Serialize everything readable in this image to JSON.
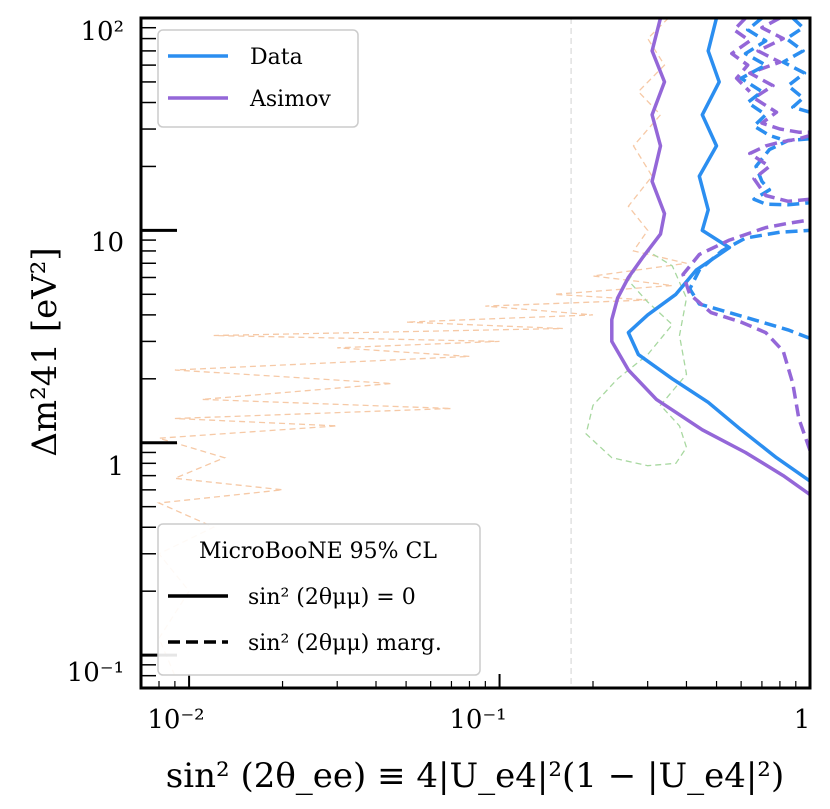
{
  "chart_data": {
    "type": "line",
    "title": "",
    "xlabel": "sin² (2θ_ee) ≡ 4|U_e4|²(1 − |U_e4|²)",
    "ylabel": "Δm²41 [eV²]",
    "xscale": "log",
    "yscale": "log",
    "xlim": [
      0.007,
      1.0
    ],
    "ylim": [
      0.07,
      100
    ],
    "x_tick_labels": [
      "10⁻²",
      "10⁻¹",
      "1"
    ],
    "y_tick_labels": [
      "10⁻¹",
      "1",
      "10",
      "10²"
    ],
    "grid": false,
    "legends": [
      {
        "position": "top-left",
        "entries": [
          "Data",
          "Asimov"
        ]
      },
      {
        "position": "bottom-left",
        "title": "MicroBooNE 95% CL",
        "entries": [
          "sin² (2θμμ) = 0",
          "sin² (2θμμ)  marg."
        ]
      }
    ],
    "reference_lines": [
      {
        "type": "vertical",
        "x": 0.17,
        "style": "thin dashed",
        "color": "#cccccc"
      }
    ],
    "series": [
      {
        "name": "Data",
        "variant": "sin² (2θμμ) = 0",
        "color": "#2b8ef0",
        "style": "solid",
        "points": [
          [
            0.5,
            100
          ],
          [
            0.47,
            70
          ],
          [
            0.51,
            50
          ],
          [
            0.45,
            35
          ],
          [
            0.5,
            25
          ],
          [
            0.44,
            18
          ],
          [
            0.47,
            12.5
          ],
          [
            0.45,
            10
          ],
          [
            0.55,
            8.3
          ],
          [
            0.43,
            6.5
          ],
          [
            0.37,
            5.0
          ],
          [
            0.3,
            4.0
          ],
          [
            0.26,
            3.3
          ],
          [
            0.28,
            2.6
          ],
          [
            0.36,
            2.0
          ],
          [
            0.47,
            1.55
          ],
          [
            0.6,
            1.15
          ],
          [
            0.78,
            0.85
          ],
          [
            1.0,
            0.66
          ]
        ]
      },
      {
        "name": "Asimov",
        "variant": "sin² (2θμμ) = 0",
        "color": "#9467d8",
        "style": "solid",
        "points": [
          [
            0.33,
            100
          ],
          [
            0.31,
            70
          ],
          [
            0.34,
            50
          ],
          [
            0.31,
            35
          ],
          [
            0.33,
            25
          ],
          [
            0.31,
            17
          ],
          [
            0.34,
            12
          ],
          [
            0.33,
            9.6
          ],
          [
            0.29,
            7.5
          ],
          [
            0.26,
            6.0
          ],
          [
            0.24,
            4.8
          ],
          [
            0.23,
            3.8
          ],
          [
            0.23,
            3.0
          ],
          [
            0.26,
            2.2
          ],
          [
            0.32,
            1.6
          ],
          [
            0.45,
            1.15
          ],
          [
            0.62,
            0.9
          ],
          [
            0.82,
            0.7
          ],
          [
            1.0,
            0.57
          ]
        ]
      },
      {
        "name": "Data",
        "variant": "sin² (2θμμ)  marg.",
        "color": "#2b8ef0",
        "style": "dashed",
        "points": [
          [
            1.0,
            3.1
          ],
          [
            0.85,
            3.4
          ],
          [
            0.7,
            3.7
          ],
          [
            0.55,
            4.1
          ],
          [
            0.44,
            4.5
          ],
          [
            0.41,
            5.3
          ],
          [
            0.44,
            6.5
          ],
          [
            0.52,
            8.0
          ],
          [
            0.62,
            9.2
          ],
          [
            0.8,
            9.8
          ],
          [
            1.0,
            10
          ]
        ]
      },
      {
        "name": "Asimov",
        "variant": "sin² (2θμμ)  marg.",
        "color": "#9467d8",
        "style": "dashed",
        "points": [
          [
            1.0,
            0.92
          ],
          [
            0.92,
            1.3
          ],
          [
            0.88,
            1.9
          ],
          [
            0.82,
            2.7
          ],
          [
            0.72,
            3.3
          ],
          [
            0.6,
            3.7
          ],
          [
            0.48,
            4.1
          ],
          [
            0.41,
            5.0
          ],
          [
            0.39,
            6.2
          ],
          [
            0.44,
            7.7
          ],
          [
            0.55,
            9.0
          ],
          [
            0.72,
            10.3
          ],
          [
            0.85,
            10.8
          ],
          [
            1.0,
            11.2
          ]
        ]
      },
      {
        "name": "Data",
        "variant": "sin² (2θμμ)  marg.",
        "color": "#2b8ef0",
        "style": "dashed",
        "points": [
          [
            1.0,
            27
          ],
          [
            0.85,
            26.5
          ],
          [
            0.74,
            24
          ],
          [
            0.67,
            20
          ],
          [
            0.7,
            17
          ],
          [
            0.74,
            15.5
          ],
          [
            0.66,
            14
          ],
          [
            0.72,
            13.3
          ],
          [
            0.85,
            13.2
          ],
          [
            1.0,
            13.5
          ]
        ]
      },
      {
        "name": "Asimov",
        "variant": "sin² (2θμμ)  marg.",
        "color": "#9467d8",
        "style": "dashed",
        "points": [
          [
            1.0,
            14
          ],
          [
            0.85,
            13.7
          ],
          [
            0.72,
            14.6
          ],
          [
            0.66,
            17.5
          ],
          [
            0.74,
            20
          ],
          [
            0.64,
            23
          ],
          [
            0.72,
            25
          ],
          [
            0.8,
            26
          ],
          [
            0.92,
            27
          ],
          [
            1.0,
            28
          ]
        ]
      },
      {
        "name": "Data",
        "variant": "sin² (2θμμ)  marg.",
        "color": "#2b8ef0",
        "style": "dashed",
        "points": [
          [
            0.88,
            100
          ],
          [
            0.95,
            90
          ],
          [
            0.84,
            80
          ],
          [
            0.95,
            70
          ],
          [
            0.82,
            62
          ],
          [
            0.96,
            55
          ],
          [
            0.85,
            48
          ],
          [
            0.95,
            42
          ],
          [
            0.88,
            38
          ],
          [
            1.0,
            36
          ]
        ]
      },
      {
        "name": "Asimov",
        "variant": "sin² (2θμμ)  marg.",
        "color": "#9467d8",
        "style": "dashed",
        "points": [
          [
            0.8,
            100
          ],
          [
            0.7,
            90
          ],
          [
            0.82,
            80
          ],
          [
            0.68,
            70
          ],
          [
            0.8,
            62
          ],
          [
            0.64,
            55
          ],
          [
            0.76,
            48
          ],
          [
            0.66,
            42
          ],
          [
            0.78,
            36
          ],
          [
            0.7,
            32
          ],
          [
            0.8,
            30
          ],
          [
            0.92,
            29
          ],
          [
            1.0,
            29
          ]
        ]
      },
      {
        "name": "Data",
        "variant": "sin² (2θμμ)  marg.",
        "color": "#2b8ef0",
        "style": "dashed",
        "points": [
          [
            0.7,
            100
          ],
          [
            0.63,
            88
          ],
          [
            0.72,
            78
          ],
          [
            0.62,
            68
          ],
          [
            0.72,
            60
          ],
          [
            0.6,
            52
          ],
          [
            0.7,
            45
          ],
          [
            0.63,
            40
          ],
          [
            0.72,
            35
          ],
          [
            0.66,
            31
          ],
          [
            0.74,
            28
          ],
          [
            0.8,
            27
          ]
        ]
      },
      {
        "name": "Asimov",
        "variant": "sin² (2θμμ)  marg.",
        "color": "#9467d8",
        "style": "dashed",
        "points": [
          [
            0.62,
            100
          ],
          [
            0.57,
            88
          ],
          [
            0.64,
            78
          ],
          [
            0.56,
            68
          ],
          [
            0.63,
            60
          ],
          [
            0.58,
            52
          ],
          [
            0.64,
            45
          ]
        ]
      }
    ],
    "background_traces": [
      {
        "color": "#f6c9a6",
        "style": "thin dashed",
        "closed": false,
        "points": [
          [
            0.35,
            100
          ],
          [
            0.3,
            80
          ],
          [
            0.34,
            60
          ],
          [
            0.28,
            45
          ],
          [
            0.33,
            35
          ],
          [
            0.27,
            25
          ],
          [
            0.31,
            18
          ],
          [
            0.26,
            13
          ],
          [
            0.3,
            10
          ],
          [
            0.27,
            8
          ],
          [
            0.4,
            7
          ],
          [
            0.2,
            6.1
          ],
          [
            0.36,
            5.5
          ],
          [
            0.15,
            5.0
          ],
          [
            0.3,
            4.7
          ],
          [
            0.09,
            4.4
          ],
          [
            0.2,
            4.0
          ],
          [
            0.05,
            3.7
          ],
          [
            0.16,
            3.45
          ],
          [
            0.012,
            3.2
          ],
          [
            0.1,
            3.0
          ],
          [
            0.03,
            2.8
          ],
          [
            0.08,
            2.55
          ],
          [
            0.009,
            2.2
          ],
          [
            0.045,
            1.9
          ],
          [
            0.011,
            1.6
          ],
          [
            0.07,
            1.45
          ],
          [
            0.009,
            1.3
          ],
          [
            0.03,
            1.2
          ],
          [
            0.008,
            1.05
          ],
          [
            0.013,
            0.85
          ],
          [
            0.009,
            0.68
          ],
          [
            0.02,
            0.6
          ],
          [
            0.008,
            0.52
          ],
          [
            0.012,
            0.4
          ],
          [
            0.008,
            0.3
          ],
          [
            0.01,
            0.2
          ],
          [
            0.008,
            0.12
          ],
          [
            0.009,
            0.08
          ]
        ]
      },
      {
        "color": "#a8d8a0",
        "style": "thin dashed",
        "closed": true,
        "points": [
          [
            0.3,
            8.0
          ],
          [
            0.26,
            5.8
          ],
          [
            0.3,
            4.6
          ],
          [
            0.36,
            3.6
          ],
          [
            0.3,
            2.6
          ],
          [
            0.24,
            2.0
          ],
          [
            0.2,
            1.5
          ],
          [
            0.19,
            1.1
          ],
          [
            0.23,
            0.85
          ],
          [
            0.3,
            0.78
          ],
          [
            0.37,
            0.8
          ],
          [
            0.4,
            0.95
          ],
          [
            0.38,
            1.2
          ],
          [
            0.33,
            1.5
          ],
          [
            0.4,
            2.1
          ],
          [
            0.38,
            3.2
          ],
          [
            0.4,
            4.8
          ],
          [
            0.36,
            6.8
          ],
          [
            0.3,
            8.0
          ]
        ]
      }
    ]
  }
}
